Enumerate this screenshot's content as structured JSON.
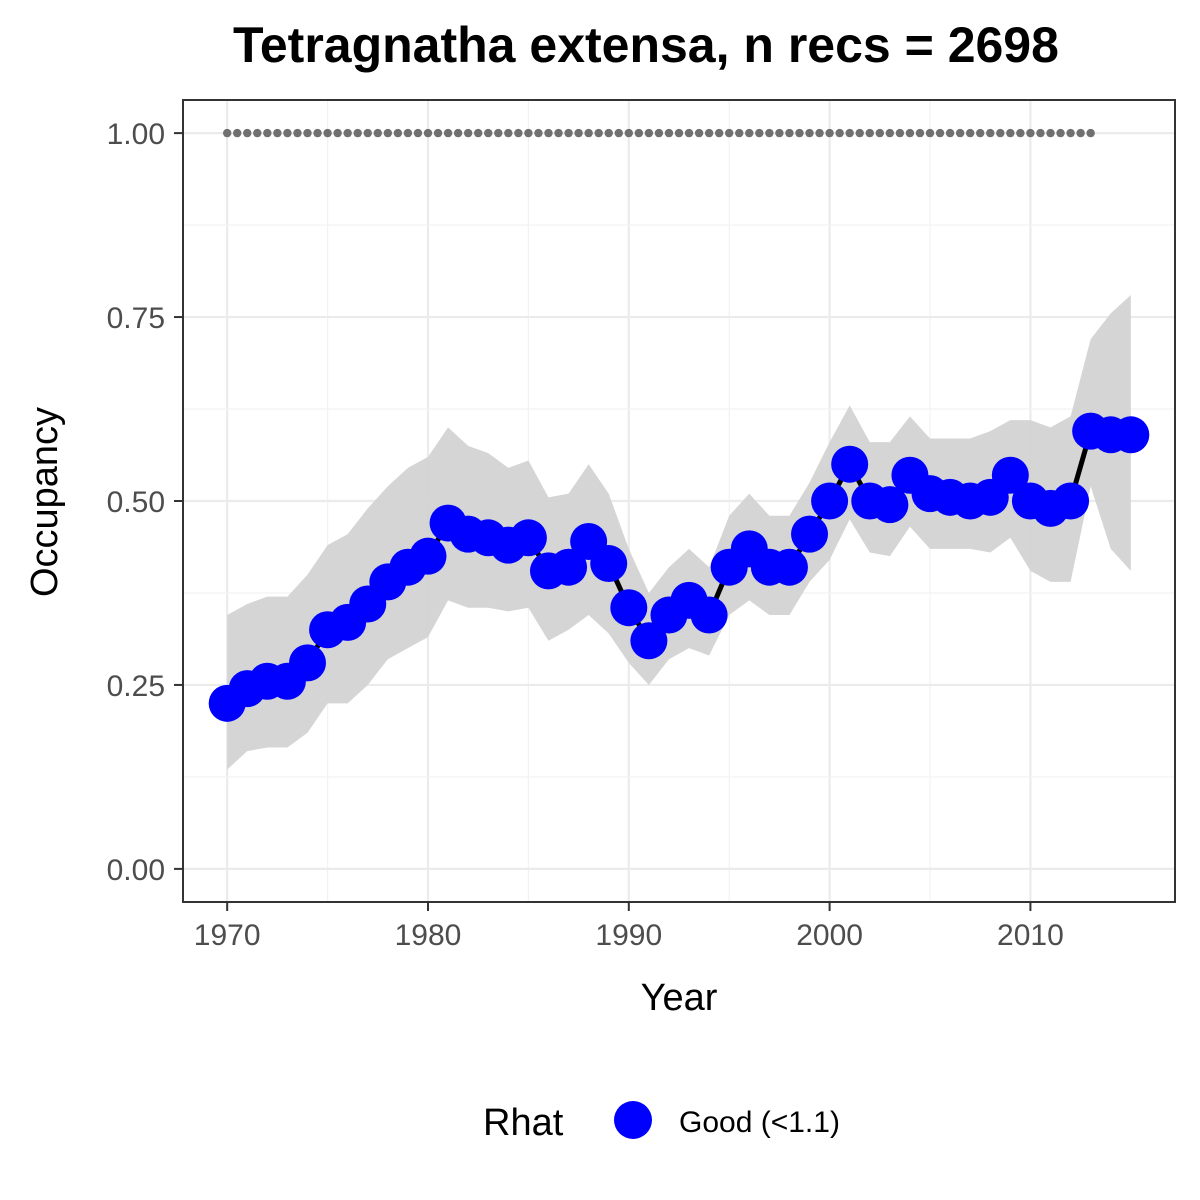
{
  "chart_data": {
    "type": "line",
    "title": "Tetragnatha extensa, n recs = 2698",
    "xlabel": "Year",
    "ylabel": "Occupancy",
    "xlim": [
      1967.8,
      2017.2
    ],
    "ylim": [
      -0.045,
      1.045
    ],
    "x_ticks": [
      1970,
      1980,
      1990,
      2000,
      2010
    ],
    "x_tick_labels": [
      "1970",
      "1980",
      "1990",
      "2000",
      "2010"
    ],
    "y_ticks": [
      0,
      0.25,
      0.5,
      0.75,
      1.0
    ],
    "y_tick_labels": [
      "0.00",
      "0.25",
      "0.50",
      "0.75",
      "1.00"
    ],
    "grid": true,
    "legend": {
      "title": "Rhat",
      "position": "bottom",
      "items": [
        {
          "label": "Good (<1.1)",
          "color": "#0000ff"
        }
      ]
    },
    "colors": {
      "points": "#0000ff",
      "line": "#000000",
      "ribbon": "#d3d3d3",
      "reference": "#707070"
    },
    "reference_line": {
      "y": 1.0,
      "x_start": 1970,
      "x_end": 2013,
      "style": "dotted"
    },
    "series": [
      {
        "name": "Good (<1.1)",
        "x": [
          1970,
          1971,
          1972,
          1973,
          1974,
          1975,
          1976,
          1977,
          1978,
          1979,
          1980,
          1981,
          1982,
          1983,
          1984,
          1985,
          1986,
          1987,
          1988,
          1989,
          1990,
          1991,
          1992,
          1993,
          1994,
          1995,
          1996,
          1997,
          1998,
          1999,
          2000,
          2001,
          2002,
          2003,
          2004,
          2005,
          2006,
          2007,
          2008,
          2009,
          2010,
          2011,
          2012,
          2013,
          2014,
          2015
        ],
        "y": [
          0.225,
          0.245,
          0.255,
          0.255,
          0.28,
          0.325,
          0.335,
          0.36,
          0.39,
          0.41,
          0.425,
          0.47,
          0.455,
          0.45,
          0.44,
          0.45,
          0.405,
          0.41,
          0.445,
          0.415,
          0.355,
          0.31,
          0.345,
          0.365,
          0.345,
          0.41,
          0.435,
          0.41,
          0.41,
          0.455,
          0.5,
          0.55,
          0.5,
          0.495,
          0.535,
          0.51,
          0.505,
          0.5,
          0.505,
          0.535,
          0.5,
          0.49,
          0.5,
          0.595,
          0.59,
          0.59
        ],
        "lower": [
          0.135,
          0.16,
          0.165,
          0.165,
          0.185,
          0.225,
          0.225,
          0.25,
          0.285,
          0.3,
          0.315,
          0.365,
          0.355,
          0.355,
          0.35,
          0.355,
          0.31,
          0.325,
          0.345,
          0.32,
          0.28,
          0.25,
          0.285,
          0.3,
          0.29,
          0.345,
          0.365,
          0.345,
          0.345,
          0.39,
          0.42,
          0.475,
          0.43,
          0.425,
          0.465,
          0.435,
          0.435,
          0.435,
          0.43,
          0.45,
          0.405,
          0.39,
          0.39,
          0.52,
          0.435,
          0.405
        ],
        "upper": [
          0.345,
          0.36,
          0.37,
          0.37,
          0.4,
          0.44,
          0.455,
          0.49,
          0.52,
          0.545,
          0.56,
          0.6,
          0.575,
          0.565,
          0.545,
          0.555,
          0.505,
          0.51,
          0.55,
          0.51,
          0.435,
          0.375,
          0.41,
          0.435,
          0.41,
          0.48,
          0.51,
          0.48,
          0.48,
          0.525,
          0.58,
          0.63,
          0.58,
          0.58,
          0.615,
          0.585,
          0.585,
          0.585,
          0.595,
          0.61,
          0.61,
          0.6,
          0.615,
          0.72,
          0.755,
          0.78
        ]
      }
    ]
  }
}
